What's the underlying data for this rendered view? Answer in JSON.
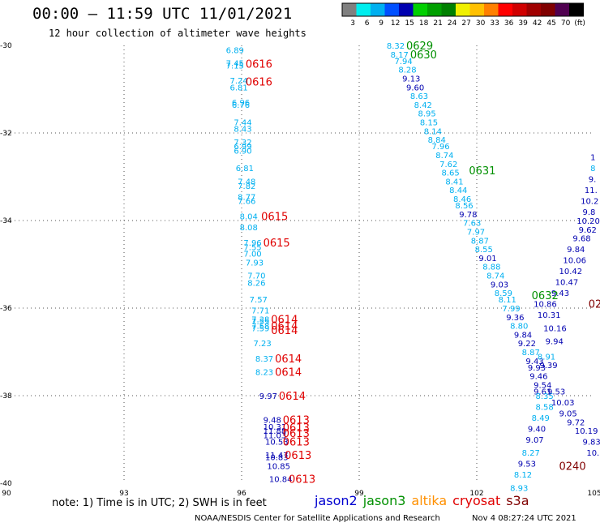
{
  "header": {
    "title": "00:00 — 11:59 UTC 11/01/2021",
    "subtitle": "12 hour collection of altimeter wave heights"
  },
  "colorbar": {
    "colors": [
      "#808080",
      "#00eeee",
      "#00b0f0",
      "#0050ff",
      "#0000b0",
      "#00d000",
      "#00a000",
      "#008000",
      "#f0f000",
      "#ffc000",
      "#ff8000",
      "#ff0000",
      "#d00000",
      "#a00000",
      "#800000",
      "#500050",
      "#000000"
    ],
    "labels": [
      "3",
      "6",
      "9",
      "12",
      "15",
      "18",
      "21",
      "24",
      "27",
      "30",
      "33",
      "36",
      "39",
      "42",
      "45",
      "70",
      "(ft)"
    ]
  },
  "axes": {
    "lon_ticks": [
      "90",
      "93",
      "96",
      "99",
      "102",
      "105"
    ],
    "lat_ticks": [
      "-30",
      "-32",
      "-34",
      "-36",
      "-38",
      "-40"
    ]
  },
  "legend": {
    "note": "note: 1) Time is in UTC; 2) SWH is in feet",
    "satellites": [
      {
        "name": "jason2",
        "color": "#0000d0"
      },
      {
        "name": "jason3",
        "color": "#009000"
      },
      {
        "name": "altika",
        "color": "#ff9000"
      },
      {
        "name": "cryosat",
        "color": "#e00000"
      },
      {
        "name": "s3a",
        "color": "#800000"
      }
    ]
  },
  "credit": "NOAA/NESDIS Center for Satellite Applications and Research",
  "timestamp": "Nov  4 08:27:24 UTC 2021",
  "map_data": {
    "type": "scatter",
    "xlim": [
      90,
      105
    ],
    "ylim": [
      -40,
      -30
    ],
    "wave_heights": [
      {
        "lon": 95.6,
        "lat": -30.1,
        "text": "6.89",
        "c": "#00b0f0"
      },
      {
        "lon": 95.6,
        "lat": -30.4,
        "text": "7.45",
        "c": "#00b0f0"
      },
      {
        "lon": 95.6,
        "lat": -30.45,
        "text": "7.15",
        "c": "#00b0f0"
      },
      {
        "lon": 95.7,
        "lat": -30.8,
        "text": "7.24",
        "c": "#00b0f0"
      },
      {
        "lon": 95.7,
        "lat": -30.95,
        "text": "6.81",
        "c": "#00b0f0"
      },
      {
        "lon": 95.75,
        "lat": -31.3,
        "text": "6.96",
        "c": "#00b0f0"
      },
      {
        "lon": 95.75,
        "lat": -31.35,
        "text": "6.76",
        "c": "#00b0f0"
      },
      {
        "lon": 95.8,
        "lat": -31.75,
        "text": "7.44",
        "c": "#00b0f0"
      },
      {
        "lon": 95.8,
        "lat": -31.9,
        "text": "8.43",
        "c": "#00b0f0"
      },
      {
        "lon": 95.8,
        "lat": -32.2,
        "text": "7.32",
        "c": "#00b0f0"
      },
      {
        "lon": 95.8,
        "lat": -32.3,
        "text": "6.99",
        "c": "#00b0f0"
      },
      {
        "lon": 95.8,
        "lat": -32.4,
        "text": "6.90",
        "c": "#00b0f0"
      },
      {
        "lon": 95.85,
        "lat": -32.8,
        "text": "6.81",
        "c": "#00b0f0"
      },
      {
        "lon": 95.9,
        "lat": -33.1,
        "text": "7.48",
        "c": "#00b0f0"
      },
      {
        "lon": 95.9,
        "lat": -33.2,
        "text": "7.82",
        "c": "#00b0f0"
      },
      {
        "lon": 95.9,
        "lat": -33.45,
        "text": "8.77",
        "c": "#00b0f0"
      },
      {
        "lon": 95.9,
        "lat": -33.55,
        "text": "7.66",
        "c": "#00b0f0"
      },
      {
        "lon": 95.95,
        "lat": -33.9,
        "text": "8.04",
        "c": "#00b0f0"
      },
      {
        "lon": 95.95,
        "lat": -34.15,
        "text": "8.08",
        "c": "#00b0f0"
      },
      {
        "lon": 96.05,
        "lat": -34.5,
        "text": "7.96",
        "c": "#00b0f0"
      },
      {
        "lon": 96.05,
        "lat": -34.6,
        "text": "7.55",
        "c": "#00b0f0"
      },
      {
        "lon": 96.05,
        "lat": -34.75,
        "text": "7.00",
        "c": "#00b0f0"
      },
      {
        "lon": 96.1,
        "lat": -34.95,
        "text": "7.93",
        "c": "#00b0f0"
      },
      {
        "lon": 96.15,
        "lat": -35.25,
        "text": "7.70",
        "c": "#00b0f0"
      },
      {
        "lon": 96.15,
        "lat": -35.42,
        "text": "8.26",
        "c": "#00b0f0"
      },
      {
        "lon": 96.2,
        "lat": -35.8,
        "text": "7.57",
        "c": "#00b0f0"
      },
      {
        "lon": 96.25,
        "lat": -36.05,
        "text": "7.71",
        "c": "#00b0f0"
      },
      {
        "lon": 96.25,
        "lat": -36.25,
        "text": "7.38",
        "c": "#00b0f0"
      },
      {
        "lon": 96.25,
        "lat": -36.3,
        "text": "7.55",
        "c": "#00b0f0"
      },
      {
        "lon": 96.25,
        "lat": -36.4,
        "text": "7.58",
        "c": "#00b0f0"
      },
      {
        "lon": 96.25,
        "lat": -36.45,
        "text": "7.59",
        "c": "#00b0f0"
      },
      {
        "lon": 96.3,
        "lat": -36.8,
        "text": "7.23",
        "c": "#00b0f0"
      },
      {
        "lon": 96.35,
        "lat": -37.15,
        "text": "8.37",
        "c": "#00b0f0"
      },
      {
        "lon": 96.35,
        "lat": -37.45,
        "text": "8.23",
        "c": "#00b0f0"
      },
      {
        "lon": 96.45,
        "lat": -38.0,
        "text": "9.97",
        "c": "#0000b0"
      },
      {
        "lon": 96.55,
        "lat": -38.55,
        "text": "9.48",
        "c": "#0000b0"
      },
      {
        "lon": 96.55,
        "lat": -38.7,
        "text": "10.31",
        "c": "#0000b0"
      },
      {
        "lon": 96.55,
        "lat": -38.8,
        "text": "11.88",
        "c": "#0000b0"
      },
      {
        "lon": 96.55,
        "lat": -38.9,
        "text": "11.03",
        "c": "#0000b0"
      },
      {
        "lon": 96.6,
        "lat": -39.05,
        "text": "10.53",
        "c": "#0000b0"
      },
      {
        "lon": 96.6,
        "lat": -39.35,
        "text": "11.47",
        "c": "#0000b0"
      },
      {
        "lon": 96.6,
        "lat": -39.4,
        "text": "10.83",
        "c": "#0000b0"
      },
      {
        "lon": 96.65,
        "lat": -39.6,
        "text": "10.85",
        "c": "#0000b0"
      },
      {
        "lon": 96.7,
        "lat": -39.9,
        "text": "10.84",
        "c": "#0000b0"
      },
      {
        "lon": 99.7,
        "lat": -30.0,
        "text": "8.32",
        "c": "#00b0f0"
      },
      {
        "lon": 99.8,
        "lat": -30.2,
        "text": "8.17",
        "c": "#00b0f0"
      },
      {
        "lon": 99.9,
        "lat": -30.35,
        "text": "7.94",
        "c": "#00b0f0"
      },
      {
        "lon": 100.0,
        "lat": -30.55,
        "text": "8.28",
        "c": "#00b0f0"
      },
      {
        "lon": 100.1,
        "lat": -30.75,
        "text": "9.13",
        "c": "#0000b0"
      },
      {
        "lon": 100.2,
        "lat": -30.95,
        "text": "9.60",
        "c": "#0000b0"
      },
      {
        "lon": 100.3,
        "lat": -31.15,
        "text": "8.63",
        "c": "#00b0f0"
      },
      {
        "lon": 100.4,
        "lat": -31.35,
        "text": "8.42",
        "c": "#00b0f0"
      },
      {
        "lon": 100.5,
        "lat": -31.55,
        "text": "8.95",
        "c": "#00b0f0"
      },
      {
        "lon": 100.55,
        "lat": -31.75,
        "text": "8.15",
        "c": "#00b0f0"
      },
      {
        "lon": 100.65,
        "lat": -31.95,
        "text": "8.14",
        "c": "#00b0f0"
      },
      {
        "lon": 100.75,
        "lat": -32.15,
        "text": "8.84",
        "c": "#00b0f0"
      },
      {
        "lon": 100.85,
        "lat": -32.3,
        "text": "7.96",
        "c": "#00b0f0"
      },
      {
        "lon": 100.95,
        "lat": -32.5,
        "text": "8.74",
        "c": "#00b0f0"
      },
      {
        "lon": 101.05,
        "lat": -32.7,
        "text": "7.62",
        "c": "#00b0f0"
      },
      {
        "lon": 101.1,
        "lat": -32.9,
        "text": "8.65",
        "c": "#00b0f0"
      },
      {
        "lon": 101.2,
        "lat": -33.1,
        "text": "8.41",
        "c": "#00b0f0"
      },
      {
        "lon": 101.3,
        "lat": -33.3,
        "text": "8.44",
        "c": "#00b0f0"
      },
      {
        "lon": 101.4,
        "lat": -33.5,
        "text": "8.46",
        "c": "#00b0f0"
      },
      {
        "lon": 101.45,
        "lat": -33.65,
        "text": "8.56",
        "c": "#00b0f0"
      },
      {
        "lon": 101.55,
        "lat": -33.85,
        "text": "9.78",
        "c": "#0000b0"
      },
      {
        "lon": 101.65,
        "lat": -34.05,
        "text": "7.63",
        "c": "#00b0f0"
      },
      {
        "lon": 101.75,
        "lat": -34.25,
        "text": "7.97",
        "c": "#00b0f0"
      },
      {
        "lon": 101.85,
        "lat": -34.45,
        "text": "8.87",
        "c": "#00b0f0"
      },
      {
        "lon": 101.95,
        "lat": -34.65,
        "text": "8.55",
        "c": "#00b0f0"
      },
      {
        "lon": 102.05,
        "lat": -34.85,
        "text": "9.01",
        "c": "#0000b0"
      },
      {
        "lon": 102.15,
        "lat": -35.05,
        "text": "8.88",
        "c": "#00b0f0"
      },
      {
        "lon": 102.25,
        "lat": -35.25,
        "text": "8.74",
        "c": "#00b0f0"
      },
      {
        "lon": 102.35,
        "lat": -35.45,
        "text": "9.03",
        "c": "#0000b0"
      },
      {
        "lon": 102.45,
        "lat": -35.65,
        "text": "8.59",
        "c": "#00b0f0"
      },
      {
        "lon": 102.55,
        "lat": -35.8,
        "text": "8.11",
        "c": "#00b0f0"
      },
      {
        "lon": 102.65,
        "lat": -36.0,
        "text": "7.99",
        "c": "#00b0f0"
      },
      {
        "lon": 102.75,
        "lat": -36.2,
        "text": "9.36",
        "c": "#0000b0"
      },
      {
        "lon": 102.85,
        "lat": -36.4,
        "text": "8.80",
        "c": "#00b0f0"
      },
      {
        "lon": 102.95,
        "lat": -36.6,
        "text": "9.84",
        "c": "#0000b0"
      },
      {
        "lon": 103.05,
        "lat": -36.8,
        "text": "9.22",
        "c": "#0000b0"
      },
      {
        "lon": 103.15,
        "lat": -37.0,
        "text": "8.87",
        "c": "#00b0f0"
      },
      {
        "lon": 103.25,
        "lat": -37.2,
        "text": "9.43",
        "c": "#0000b0"
      },
      {
        "lon": 103.3,
        "lat": -37.35,
        "text": "9.93",
        "c": "#0000b0"
      },
      {
        "lon": 103.35,
        "lat": -37.55,
        "text": "9.46",
        "c": "#0000b0"
      },
      {
        "lon": 103.45,
        "lat": -37.75,
        "text": "9.54",
        "c": "#0000b0"
      },
      {
        "lon": 103.45,
        "lat": -37.9,
        "text": "9.61",
        "c": "#0000b0"
      },
      {
        "lon": 103.5,
        "lat": -38.0,
        "text": "8.35",
        "c": "#00b0f0"
      },
      {
        "lon": 103.5,
        "lat": -38.25,
        "text": "8.58",
        "c": "#00b0f0"
      },
      {
        "lon": 103.4,
        "lat": -38.5,
        "text": "8.49",
        "c": "#00b0f0"
      },
      {
        "lon": 103.3,
        "lat": -38.75,
        "text": "9.40",
        "c": "#0000b0"
      },
      {
        "lon": 103.25,
        "lat": -39.0,
        "text": "9.07",
        "c": "#0000b0"
      },
      {
        "lon": 103.15,
        "lat": -39.3,
        "text": "8.27",
        "c": "#00b0f0"
      },
      {
        "lon": 103.05,
        "lat": -39.55,
        "text": "9.53",
        "c": "#0000b0"
      },
      {
        "lon": 102.95,
        "lat": -39.8,
        "text": "8.12",
        "c": "#00b0f0"
      },
      {
        "lon": 102.85,
        "lat": -40.1,
        "text": "8.93",
        "c": "#00b0f0"
      },
      {
        "lon": 103.55,
        "lat": -37.1,
        "text": "8.91",
        "c": "#00b0f0"
      },
      {
        "lon": 103.6,
        "lat": -37.3,
        "text": "9.39",
        "c": "#0000b0"
      },
      {
        "lon": 103.8,
        "lat": -37.9,
        "text": "9.53",
        "c": "#0000b0"
      },
      {
        "lon": 103.9,
        "lat": -38.15,
        "text": "10.03",
        "c": "#0000b0"
      },
      {
        "lon": 104.1,
        "lat": -38.4,
        "text": "9.05",
        "c": "#0000b0"
      },
      {
        "lon": 104.3,
        "lat": -38.6,
        "text": "9.72",
        "c": "#0000b0"
      },
      {
        "lon": 104.5,
        "lat": -38.8,
        "text": "10.19",
        "c": "#0000b0"
      },
      {
        "lon": 104.7,
        "lat": -39.05,
        "text": "9.83",
        "c": "#0000b0"
      },
      {
        "lon": 104.8,
        "lat": -39.3,
        "text": "10.",
        "c": "#0000b0"
      },
      {
        "lon": 103.75,
        "lat": -36.75,
        "text": "9.94",
        "c": "#0000b0"
      },
      {
        "lon": 103.7,
        "lat": -36.45,
        "text": "10.16",
        "c": "#0000b0"
      },
      {
        "lon": 103.55,
        "lat": -36.15,
        "text": "10.31",
        "c": "#0000b0"
      },
      {
        "lon": 103.45,
        "lat": -35.9,
        "text": "10.86",
        "c": "#0000b0"
      },
      {
        "lon": 103.9,
        "lat": -35.65,
        "text": "9.43",
        "c": "#0000b0"
      },
      {
        "lon": 104.0,
        "lat": -35.4,
        "text": "10.47",
        "c": "#0000b0"
      },
      {
        "lon": 104.1,
        "lat": -35.15,
        "text": "10.42",
        "c": "#0000b0"
      },
      {
        "lon": 104.2,
        "lat": -34.9,
        "text": "10.06",
        "c": "#0000b0"
      },
      {
        "lon": 104.3,
        "lat": -34.65,
        "text": "9.84",
        "c": "#0000b0"
      },
      {
        "lon": 104.45,
        "lat": -34.4,
        "text": "9.68",
        "c": "#0000b0"
      },
      {
        "lon": 104.6,
        "lat": -34.2,
        "text": "9.62",
        "c": "#0000b0"
      },
      {
        "lon": 104.55,
        "lat": -34.0,
        "text": "10.20",
        "c": "#0000b0"
      },
      {
        "lon": 104.7,
        "lat": -33.8,
        "text": "9.8",
        "c": "#0000b0"
      },
      {
        "lon": 104.65,
        "lat": -33.55,
        "text": "10.2",
        "c": "#0000b0"
      },
      {
        "lon": 104.75,
        "lat": -33.3,
        "text": "11.",
        "c": "#0000b0"
      },
      {
        "lon": 104.85,
        "lat": -33.05,
        "text": "9.",
        "c": "#0000b0"
      },
      {
        "lon": 104.9,
        "lat": -32.8,
        "text": "8",
        "c": "#00b0f0"
      },
      {
        "lon": 104.9,
        "lat": -32.55,
        "text": "1",
        "c": "#0000b0"
      }
    ],
    "time_labels": [
      {
        "lon": 96.1,
        "lat": -30.42,
        "text": "0616",
        "c": "#e00000"
      },
      {
        "lon": 96.1,
        "lat": -30.82,
        "text": "0616",
        "c": "#e00000"
      },
      {
        "lon": 96.5,
        "lat": -33.9,
        "text": "0615",
        "c": "#e00000"
      },
      {
        "lon": 96.55,
        "lat": -34.5,
        "text": "0615",
        "c": "#e00000"
      },
      {
        "lon": 96.75,
        "lat": -36.25,
        "text": "0614",
        "c": "#e00000"
      },
      {
        "lon": 96.75,
        "lat": -36.4,
        "text": "0614",
        "c": "#e00000"
      },
      {
        "lon": 96.75,
        "lat": -36.5,
        "text": "0614",
        "c": "#e00000"
      },
      {
        "lon": 96.85,
        "lat": -37.15,
        "text": "0614",
        "c": "#e00000"
      },
      {
        "lon": 96.85,
        "lat": -37.45,
        "text": "0614",
        "c": "#e00000"
      },
      {
        "lon": 96.95,
        "lat": -38.0,
        "text": "0614",
        "c": "#e00000"
      },
      {
        "lon": 97.05,
        "lat": -38.55,
        "text": "0613",
        "c": "#e00000"
      },
      {
        "lon": 97.05,
        "lat": -38.72,
        "text": "0613",
        "c": "#e00000"
      },
      {
        "lon": 97.05,
        "lat": -38.85,
        "text": "0613",
        "c": "#e00000"
      },
      {
        "lon": 97.05,
        "lat": -39.05,
        "text": "0613",
        "c": "#e00000"
      },
      {
        "lon": 97.1,
        "lat": -39.35,
        "text": "0613",
        "c": "#e00000"
      },
      {
        "lon": 97.2,
        "lat": -39.9,
        "text": "0613",
        "c": "#e00000"
      },
      {
        "lon": 100.2,
        "lat": -30.0,
        "text": "0629",
        "c": "#009000"
      },
      {
        "lon": 100.3,
        "lat": -30.2,
        "text": "0630",
        "c": "#009000"
      },
      {
        "lon": 101.8,
        "lat": -32.85,
        "text": "0631",
        "c": "#009000"
      },
      {
        "lon": 103.4,
        "lat": -35.7,
        "text": "0632",
        "c": "#009000"
      },
      {
        "lon": 104.85,
        "lat": -35.9,
        "text": "02",
        "c": "#800000"
      },
      {
        "lon": 104.1,
        "lat": -39.6,
        "text": "0240",
        "c": "#800000"
      }
    ]
  }
}
